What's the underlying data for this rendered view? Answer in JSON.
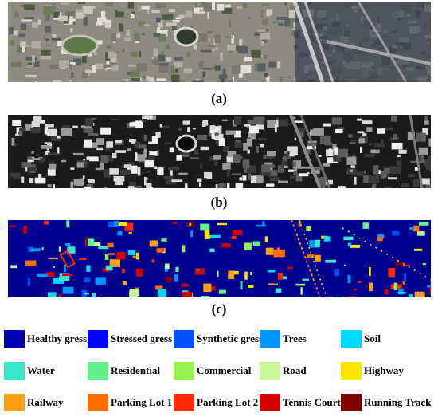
{
  "panels": [
    {
      "id": "a",
      "caption": "(a)"
    },
    {
      "id": "b",
      "caption": "(b)"
    },
    {
      "id": "c",
      "caption": "(c)"
    }
  ],
  "legend": [
    {
      "label": "Healthy gress",
      "color": "#0000b4"
    },
    {
      "label": "Stressed gress",
      "color": "#0000ff"
    },
    {
      "label": "Synthetic gress",
      "color": "#0050ff"
    },
    {
      "label": "Trees",
      "color": "#0096ff"
    },
    {
      "label": "Soil",
      "color": "#00d8ff"
    },
    {
      "label": "Water",
      "color": "#37e6c8"
    },
    {
      "label": "Residential",
      "color": "#64f08c"
    },
    {
      "label": "Commercial",
      "color": "#96f050"
    },
    {
      "label": "Road",
      "color": "#c8f59a"
    },
    {
      "label": "Highway",
      "color": "#ffe600"
    },
    {
      "label": "Railway",
      "color": "#ffa014"
    },
    {
      "label": "Parking Lot 1",
      "color": "#ff6e00"
    },
    {
      "label": "Parking Lot 2",
      "color": "#ff2800"
    },
    {
      "label": "Tennis Court",
      "color": "#d20000"
    },
    {
      "label": "Running Track",
      "color": "#7f0000"
    }
  ]
}
